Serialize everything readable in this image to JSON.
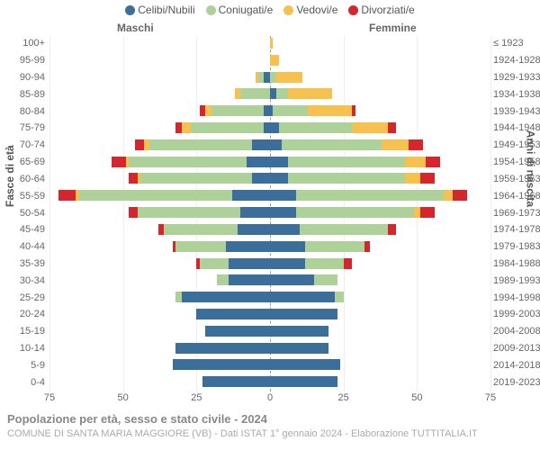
{
  "title": "Popolazione per età, sesso e stato civile - 2024",
  "subtitle": "COMUNE DI SANTA MARIA MAGGIORE (VB) - Dati ISTAT 1° gennaio 2024 - Elaborazione TUTTITALIA.IT",
  "left_axis_title": "Fasce di età",
  "right_axis_title": "Anni di nascita",
  "side_labels": {
    "male": "Maschi",
    "female": "Femmine"
  },
  "legend": [
    {
      "label": "Celibi/Nubili",
      "color": "#3b6e9a"
    },
    {
      "label": "Coniugati/e",
      "color": "#aed099"
    },
    {
      "label": "Vedovi/e",
      "color": "#f6c14e"
    },
    {
      "label": "Divorziati/e",
      "color": "#d4262c"
    }
  ],
  "colors": {
    "single": "#3b6e9a",
    "married": "#aed099",
    "widowed": "#f6c14e",
    "divorced": "#d4262c",
    "grid": "#eeeeee"
  },
  "x_axis": {
    "max": 75,
    "ticks": [
      75,
      50,
      25,
      0,
      25,
      50,
      75
    ]
  },
  "rows": [
    {
      "age": "100+",
      "birth": "≤ 1923",
      "m": [
        0,
        0,
        0,
        0
      ],
      "f": [
        0,
        0,
        1,
        0
      ]
    },
    {
      "age": "95-99",
      "birth": "1924-1928",
      "m": [
        0,
        0,
        0,
        0
      ],
      "f": [
        0,
        0,
        3,
        0
      ]
    },
    {
      "age": "90-94",
      "birth": "1929-1933",
      "m": [
        2,
        2,
        1,
        0
      ],
      "f": [
        0,
        2,
        9,
        0
      ]
    },
    {
      "age": "85-89",
      "birth": "1934-1938",
      "m": [
        0,
        10,
        2,
        0
      ],
      "f": [
        2,
        4,
        15,
        0
      ]
    },
    {
      "age": "80-84",
      "birth": "1939-1943",
      "m": [
        2,
        18,
        2,
        2
      ],
      "f": [
        1,
        12,
        15,
        1
      ]
    },
    {
      "age": "75-79",
      "birth": "1944-1948",
      "m": [
        2,
        25,
        3,
        2
      ],
      "f": [
        3,
        25,
        12,
        3
      ]
    },
    {
      "age": "70-74",
      "birth": "1949-1953",
      "m": [
        6,
        35,
        2,
        3
      ],
      "f": [
        4,
        34,
        9,
        5
      ]
    },
    {
      "age": "65-69",
      "birth": "1954-1958",
      "m": [
        8,
        40,
        1,
        5
      ],
      "f": [
        6,
        40,
        7,
        5
      ]
    },
    {
      "age": "60-64",
      "birth": "1959-1963",
      "m": [
        6,
        38,
        1,
        3
      ],
      "f": [
        6,
        40,
        5,
        5
      ]
    },
    {
      "age": "55-59",
      "birth": "1964-1968",
      "m": [
        13,
        52,
        1,
        6
      ],
      "f": [
        9,
        50,
        3,
        5
      ]
    },
    {
      "age": "50-54",
      "birth": "1969-1973",
      "m": [
        10,
        35,
        0,
        3
      ],
      "f": [
        9,
        40,
        2,
        5
      ]
    },
    {
      "age": "45-49",
      "birth": "1974-1978",
      "m": [
        11,
        25,
        0,
        2
      ],
      "f": [
        10,
        30,
        0,
        3
      ]
    },
    {
      "age": "40-44",
      "birth": "1979-1983",
      "m": [
        15,
        17,
        0,
        1
      ],
      "f": [
        12,
        20,
        0,
        2
      ]
    },
    {
      "age": "35-39",
      "birth": "1984-1988",
      "m": [
        14,
        10,
        0,
        1
      ],
      "f": [
        12,
        13,
        0,
        3
      ]
    },
    {
      "age": "30-34",
      "birth": "1989-1993",
      "m": [
        14,
        4,
        0,
        0
      ],
      "f": [
        15,
        8,
        0,
        0
      ]
    },
    {
      "age": "25-29",
      "birth": "1994-1998",
      "m": [
        30,
        2,
        0,
        0
      ],
      "f": [
        22,
        3,
        0,
        0
      ]
    },
    {
      "age": "20-24",
      "birth": "1999-2003",
      "m": [
        25,
        0,
        0,
        0
      ],
      "f": [
        23,
        0,
        0,
        0
      ]
    },
    {
      "age": "15-19",
      "birth": "2004-2008",
      "m": [
        22,
        0,
        0,
        0
      ],
      "f": [
        20,
        0,
        0,
        0
      ]
    },
    {
      "age": "10-14",
      "birth": "2009-2013",
      "m": [
        32,
        0,
        0,
        0
      ],
      "f": [
        20,
        0,
        0,
        0
      ]
    },
    {
      "age": "5-9",
      "birth": "2014-2018",
      "m": [
        33,
        0,
        0,
        0
      ],
      "f": [
        24,
        0,
        0,
        0
      ]
    },
    {
      "age": "0-4",
      "birth": "2019-2023",
      "m": [
        23,
        0,
        0,
        0
      ],
      "f": [
        23,
        0,
        0,
        0
      ]
    }
  ]
}
